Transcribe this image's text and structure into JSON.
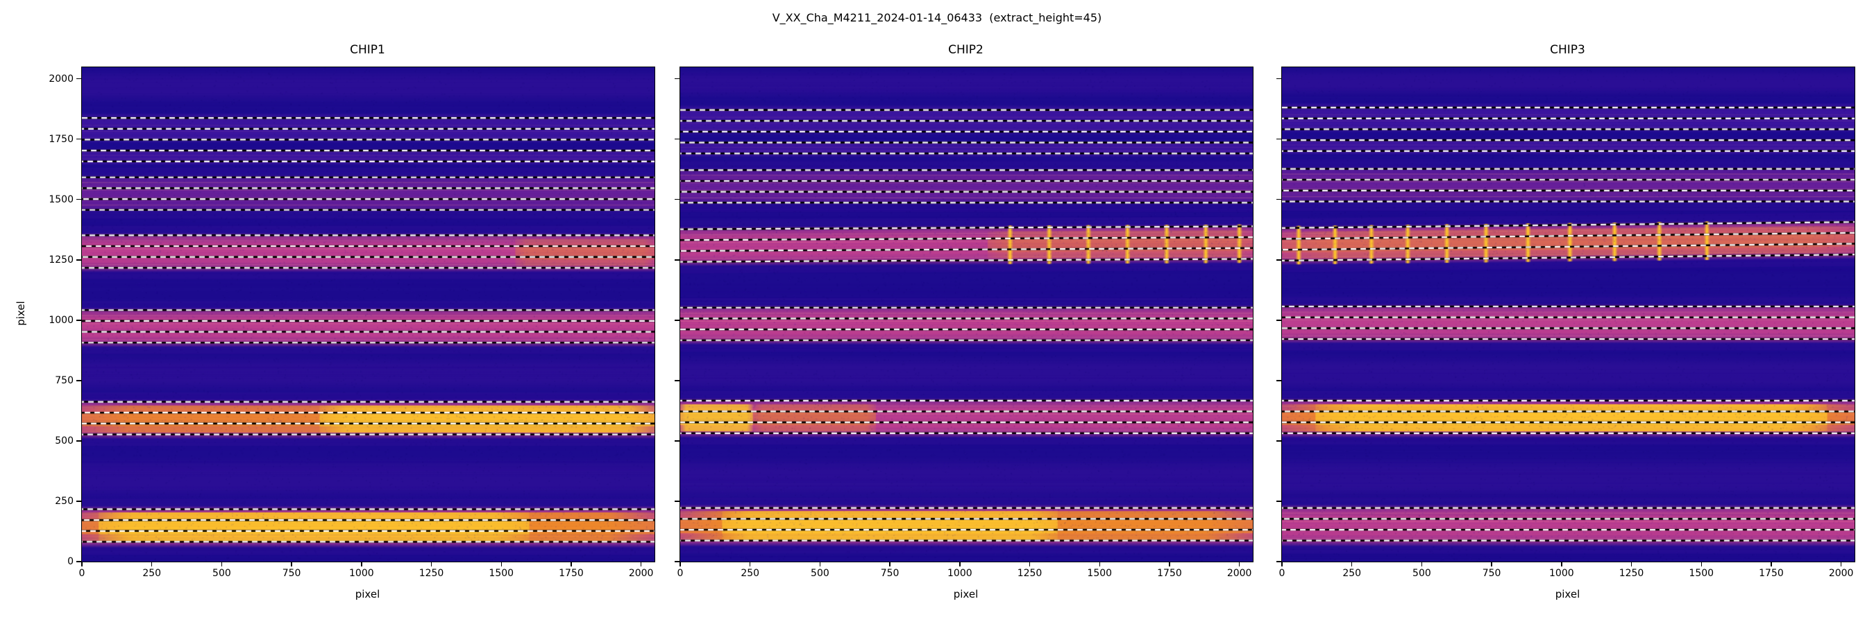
{
  "title": "V_XX_Cha_M4211_2024-01-14_06433  (extract_height=45)",
  "chart_data": {
    "type": "heatmap",
    "extract_height": 45,
    "xlim": [
      0,
      2048
    ],
    "ylim": [
      0,
      2048
    ],
    "x_ticks": [
      0,
      250,
      500,
      750,
      1000,
      1250,
      1500,
      1750,
      2000
    ],
    "y_ticks": [
      0,
      250,
      500,
      750,
      1000,
      1250,
      1500,
      1750,
      2000
    ],
    "colormap": {
      "bg": "#1d0b8f",
      "noise_light": "#3a16ad",
      "noise_dark": "#0b0367",
      "glow": "#43129f",
      "faint": "#5a1fae",
      "dim": "#4c17a6",
      "purple": "#8b2a9e",
      "magenta": "#c5418f",
      "pink": "#ef8d9c",
      "orange": "#f28c26",
      "yellow": "#fdc42e",
      "line_white": "#ffffff",
      "line_black": "#000000"
    },
    "panels": [
      {
        "title": "CHIP1",
        "xlabel": "pixel",
        "ylabel": "pixel",
        "zones": [
          {
            "y0": 252,
            "y1": 438
          },
          {
            "y0": 700,
            "y1": 858
          },
          {
            "y0": 1900,
            "y1": 2040
          }
        ],
        "orders": [
          {
            "lines": [
              1838,
              1793,
              1748
            ],
            "band": {
              "y0": 1733,
              "y1": 1860,
              "style": "faint"
            }
          },
          {
            "lines": [
              1703,
              1658
            ],
            "band": {
              "y0": 1642,
              "y1": 1713,
              "style": "faint"
            }
          },
          {
            "lines": [
              1592,
              1547,
              1502,
              1457
            ],
            "band": {
              "y0": 1447,
              "y1": 1603,
              "style": "purple"
            }
          },
          {
            "lines": [
              1352,
              1307,
              1262,
              1217
            ],
            "band": {
              "y0": 1198,
              "y1": 1363,
              "style": "magenta",
              "hot": [
                {
                  "x0": 1550,
                  "x1": 2048,
                  "style": "orange",
                  "level": 0.3
                }
              ]
            }
          },
          {
            "lines": [
              1042,
              997,
              952,
              907
            ],
            "band": {
              "y0": 888,
              "y1": 1053,
              "style": "magenta"
            }
          },
          {
            "lines": [
              662,
              617,
              572,
              527
            ],
            "band": {
              "y0": 508,
              "y1": 673,
              "style": "magenta",
              "hot": [
                {
                  "x0": 0,
                  "x1": 2048,
                  "style": "orange",
                  "level": 0.7
                },
                {
                  "x0": 850,
                  "x1": 2048,
                  "style": "yellow",
                  "level": 0.8
                }
              ]
            }
          },
          {
            "lines": [
              217,
              172,
              127,
              82
            ],
            "band": {
              "y0": 57,
              "y1": 232,
              "style": "magenta",
              "hot": [
                {
                  "x0": 0,
                  "x1": 2048,
                  "style": "orange",
                  "level": 0.85
                },
                {
                  "x0": 60,
                  "x1": 1600,
                  "style": "yellow",
                  "level": 0.8
                }
              ]
            }
          }
        ]
      },
      {
        "title": "CHIP2",
        "xlabel": "pixel",
        "ylabel": "pixel",
        "zones": [
          {
            "y0": 252,
            "y1": 438
          },
          {
            "y0": 700,
            "y1": 858
          },
          {
            "y0": 1920,
            "y1": 2040
          }
        ],
        "orders": [
          {
            "lines": [
              1871,
              1826,
              1781
            ],
            "band": {
              "y0": 1766,
              "y1": 1893,
              "style": "faint"
            }
          },
          {
            "lines": [
              1736,
              1691
            ],
            "band": {
              "y0": 1675,
              "y1": 1746,
              "style": "faint"
            }
          },
          {
            "lines": [
              1622,
              1577,
              1532,
              1487
            ],
            "band": {
              "y0": 1477,
              "y1": 1633,
              "style": "purple"
            }
          },
          {
            "lines": [
              1377,
              1332,
              1287,
              1242
            ],
            "tilt": 12,
            "band": {
              "y0": 1223,
              "y1": 1388,
              "style": "magenta",
              "tilt": 12,
              "hot": [
                {
                  "x0": 1100,
                  "x1": 2048,
                  "style": "orange",
                  "level": 0.3
                }
              ],
              "streaks": {
                "xs": [
                  1180,
                  1320,
                  1460,
                  1600,
                  1740,
                  1880,
                  2000
                ],
                "style": "yellow"
              }
            }
          },
          {
            "lines": [
              1052,
              1007,
              962,
              917
            ],
            "band": {
              "y0": 898,
              "y1": 1063,
              "style": "magenta"
            }
          },
          {
            "lines": [
              667,
              622,
              577,
              532
            ],
            "band": {
              "y0": 513,
              "y1": 678,
              "style": "magenta",
              "hot": [
                {
                  "x0": 0,
                  "x1": 260,
                  "style": "yellow",
                  "level": 0.85
                },
                {
                  "x0": 260,
                  "x1": 700,
                  "style": "orange",
                  "level": 0.4
                }
              ]
            }
          },
          {
            "lines": [
              222,
              177,
              132,
              87
            ],
            "band": {
              "y0": 62,
              "y1": 237,
              "style": "magenta",
              "hot": [
                {
                  "x0": 0,
                  "x1": 2048,
                  "style": "orange",
                  "level": 0.85
                },
                {
                  "x0": 150,
                  "x1": 1350,
                  "style": "yellow",
                  "level": 0.8
                }
              ]
            }
          }
        ]
      },
      {
        "title": "CHIP3",
        "xlabel": "pixel",
        "ylabel": "pixel",
        "zones": [
          {
            "y0": 252,
            "y1": 438
          },
          {
            "y0": 700,
            "y1": 858
          },
          {
            "y0": 1930,
            "y1": 2040
          }
        ],
        "orders": [
          {
            "lines": [
              1881,
              1836,
              1791
            ],
            "band": {
              "y0": 1776,
              "y1": 1903,
              "style": "faint"
            }
          },
          {
            "lines": [
              1746,
              1701
            ],
            "band": {
              "y0": 1685,
              "y1": 1756,
              "style": "faint"
            }
          },
          {
            "lines": [
              1627,
              1582,
              1537,
              1492
            ],
            "band": {
              "y0": 1482,
              "y1": 1638,
              "style": "purple"
            }
          },
          {
            "lines": [
              1382,
              1337,
              1292,
              1247
            ],
            "tilt": 25,
            "band": {
              "y0": 1228,
              "y1": 1393,
              "style": "magenta",
              "tilt": 25,
              "hot": [
                {
                  "x0": 0,
                  "x1": 2048,
                  "style": "orange",
                  "level": 0.35
                }
              ],
              "streaks": {
                "xs": [
                  60,
                  190,
                  320,
                  450,
                  590,
                  730,
                  880,
                  1030,
                  1190,
                  1350,
                  1520
                ],
                "style": "yellow"
              }
            }
          },
          {
            "lines": [
              1057,
              1012,
              967,
              922
            ],
            "band": {
              "y0": 903,
              "y1": 1068,
              "style": "magenta"
            }
          },
          {
            "lines": [
              667,
              622,
              577,
              532
            ],
            "band": {
              "y0": 513,
              "y1": 678,
              "style": "magenta",
              "hot": [
                {
                  "x0": 0,
                  "x1": 2048,
                  "style": "orange",
                  "level": 0.8
                },
                {
                  "x0": 120,
                  "x1": 1950,
                  "style": "yellow",
                  "level": 0.85
                }
              ]
            }
          },
          {
            "lines": [
              222,
              177,
              132,
              87
            ],
            "band": {
              "y0": 62,
              "y1": 237,
              "style": "magenta"
            }
          }
        ]
      }
    ]
  }
}
